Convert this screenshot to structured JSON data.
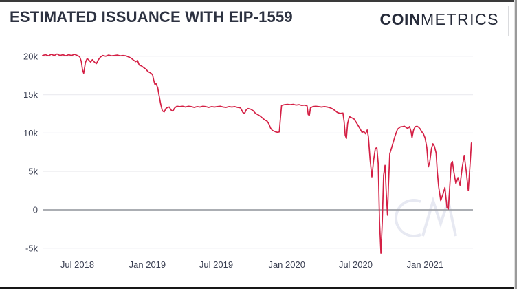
{
  "header": {
    "title": "ESTIMATED ISSUANCE WITH EIP-1559",
    "logo_bold": "COIN",
    "logo_light": "METRICS"
  },
  "watermark": "CM",
  "colors": {
    "background": "#ffffff",
    "line": "#d42045",
    "grid": "#ededf1",
    "zero_line": "#9fa2a8",
    "title": "#2d3241",
    "axis_label": "#3a3f52",
    "watermark": "#e7e9f2",
    "logo": "#262b3a"
  },
  "chart_data": {
    "type": "line",
    "title": "ESTIMATED ISSUANCE WITH EIP-1559",
    "xlabel": "",
    "ylabel": "",
    "grid": "horizontal",
    "legend": "none",
    "x_unit": "months since Apr 2018",
    "y_unit_scale": "thousands (k)",
    "ylim_k": [
      -7,
      21
    ],
    "x_ticks": [
      {
        "m": 3.0,
        "label": "Jul 2018"
      },
      {
        "m": 9.05,
        "label": "Jan 2019"
      },
      {
        "m": 15.0,
        "label": "Jul 2019"
      },
      {
        "m": 21.1,
        "label": "Jan 2020"
      },
      {
        "m": 27.05,
        "label": "Jul 2020"
      },
      {
        "m": 33.05,
        "label": "Jan 2021"
      }
    ],
    "y_ticks": [
      {
        "v": 20,
        "label": "20k"
      },
      {
        "v": 15,
        "label": "15k"
      },
      {
        "v": 10,
        "label": "10k"
      },
      {
        "v": 5,
        "label": "5k"
      },
      {
        "v": 0,
        "label": "0"
      },
      {
        "v": -5,
        "label": "-5k"
      }
    ],
    "series": [
      {
        "name": "Estimated issuance with EIP-1559",
        "color": "#d42045",
        "points": [
          [
            0,
            20.1
          ],
          [
            0.25,
            20.2
          ],
          [
            0.5,
            20.05
          ],
          [
            0.75,
            20.25
          ],
          [
            1,
            20.1
          ],
          [
            1.25,
            20.3
          ],
          [
            1.5,
            20.1
          ],
          [
            1.75,
            20.2
          ],
          [
            2,
            20.05
          ],
          [
            2.25,
            20.2
          ],
          [
            2.5,
            20.1
          ],
          [
            2.75,
            20.25
          ],
          [
            3,
            20.1
          ],
          [
            3.2,
            19.95
          ],
          [
            3.35,
            19.3
          ],
          [
            3.45,
            18.2
          ],
          [
            3.55,
            17.8
          ],
          [
            3.7,
            19.2
          ],
          [
            3.85,
            19.7
          ],
          [
            4,
            19.5
          ],
          [
            4.15,
            19.25
          ],
          [
            4.3,
            19.55
          ],
          [
            4.5,
            19.2
          ],
          [
            4.65,
            19.05
          ],
          [
            4.8,
            19.5
          ],
          [
            5,
            19.9
          ],
          [
            5.2,
            20.1
          ],
          [
            5.45,
            20
          ],
          [
            5.7,
            20.15
          ],
          [
            5.95,
            20.05
          ],
          [
            6.2,
            20.1
          ],
          [
            6.45,
            20.15
          ],
          [
            6.7,
            20.05
          ],
          [
            6.95,
            20.1
          ],
          [
            7.2,
            20.05
          ],
          [
            7.45,
            19.9
          ],
          [
            7.65,
            19.75
          ],
          [
            7.85,
            19.5
          ],
          [
            8.05,
            19.3
          ],
          [
            8.2,
            19.45
          ],
          [
            8.35,
            18.85
          ],
          [
            8.55,
            18.75
          ],
          [
            8.75,
            18.5
          ],
          [
            8.95,
            18.3
          ],
          [
            9.1,
            18
          ],
          [
            9.25,
            17.9
          ],
          [
            9.4,
            17.75
          ],
          [
            9.5,
            17.6
          ],
          [
            9.6,
            16.9
          ],
          [
            9.7,
            16.35
          ],
          [
            9.8,
            16.45
          ],
          [
            9.95,
            15.9
          ],
          [
            10.05,
            15
          ],
          [
            10.2,
            13.8
          ],
          [
            10.35,
            12.9
          ],
          [
            10.5,
            12.75
          ],
          [
            10.65,
            13.2
          ],
          [
            10.8,
            13.35
          ],
          [
            10.95,
            13.4
          ],
          [
            11.1,
            13
          ],
          [
            11.25,
            12.85
          ],
          [
            11.4,
            13.25
          ],
          [
            11.6,
            13.5
          ],
          [
            11.85,
            13.45
          ],
          [
            12.1,
            13.5
          ],
          [
            12.35,
            13.4
          ],
          [
            12.6,
            13.5
          ],
          [
            12.85,
            13.45
          ],
          [
            13.1,
            13.35
          ],
          [
            13.35,
            13.45
          ],
          [
            13.6,
            13.4
          ],
          [
            13.85,
            13.5
          ],
          [
            14.1,
            13.45
          ],
          [
            14.35,
            13.35
          ],
          [
            14.6,
            13.45
          ],
          [
            14.85,
            13.4
          ],
          [
            15.1,
            13.45
          ],
          [
            15.35,
            13.5
          ],
          [
            15.6,
            13.4
          ],
          [
            15.85,
            13.35
          ],
          [
            16.1,
            13.45
          ],
          [
            16.35,
            13.4
          ],
          [
            16.6,
            13.45
          ],
          [
            16.85,
            13.35
          ],
          [
            17.1,
            13.3
          ],
          [
            17.3,
            12.7
          ],
          [
            17.45,
            12.55
          ],
          [
            17.6,
            13.05
          ],
          [
            17.75,
            13.2
          ],
          [
            18,
            13.1
          ],
          [
            18.2,
            12.9
          ],
          [
            18.4,
            12.55
          ],
          [
            18.6,
            12.4
          ],
          [
            18.8,
            12.2
          ],
          [
            19,
            11.95
          ],
          [
            19.2,
            11.7
          ],
          [
            19.4,
            11.55
          ],
          [
            19.55,
            11.2
          ],
          [
            19.7,
            10.65
          ],
          [
            19.85,
            10.35
          ],
          [
            20,
            10.25
          ],
          [
            20.15,
            10.15
          ],
          [
            20.3,
            10.1
          ],
          [
            20.45,
            10.15
          ],
          [
            20.55,
            12
          ],
          [
            20.65,
            13.6
          ],
          [
            20.9,
            13.7
          ],
          [
            21.15,
            13.75
          ],
          [
            21.4,
            13.7
          ],
          [
            21.65,
            13.75
          ],
          [
            21.9,
            13.65
          ],
          [
            22.15,
            13.7
          ],
          [
            22.4,
            13.6
          ],
          [
            22.65,
            13.65
          ],
          [
            22.85,
            13.55
          ],
          [
            22.95,
            12.4
          ],
          [
            23.05,
            12.3
          ],
          [
            23.15,
            13.3
          ],
          [
            23.35,
            13.45
          ],
          [
            23.6,
            13.5
          ],
          [
            23.85,
            13.45
          ],
          [
            24.1,
            13.4
          ],
          [
            24.35,
            13.45
          ],
          [
            24.6,
            13.4
          ],
          [
            24.85,
            13.3
          ],
          [
            25.05,
            13.15
          ],
          [
            25.25,
            12.95
          ],
          [
            25.45,
            12.7
          ],
          [
            25.7,
            12.55
          ],
          [
            25.95,
            12.6
          ],
          [
            26.05,
            11.5
          ],
          [
            26.15,
            9.7
          ],
          [
            26.25,
            9.3
          ],
          [
            26.35,
            11.2
          ],
          [
            26.5,
            12.15
          ],
          [
            26.7,
            12
          ],
          [
            26.9,
            11.85
          ],
          [
            27.1,
            11.4
          ],
          [
            27.3,
            10.9
          ],
          [
            27.45,
            10.5
          ],
          [
            27.6,
            10.1
          ],
          [
            27.75,
            10.2
          ],
          [
            27.9,
            9.9
          ],
          [
            28.05,
            10.4
          ],
          [
            28.15,
            9.5
          ],
          [
            28.3,
            6.5
          ],
          [
            28.45,
            4.3
          ],
          [
            28.6,
            6.5
          ],
          [
            28.75,
            8
          ],
          [
            28.88,
            8.1
          ],
          [
            29,
            6
          ],
          [
            29.11,
            -1.5
          ],
          [
            29.23,
            -5.65
          ],
          [
            29.35,
            -1.5
          ],
          [
            29.46,
            4.5
          ],
          [
            29.59,
            5.8
          ],
          [
            29.7,
            2
          ],
          [
            29.8,
            -0.7
          ],
          [
            29.88,
            3
          ],
          [
            30,
            7.3
          ],
          [
            30.2,
            8.3
          ],
          [
            30.45,
            9.6
          ],
          [
            30.66,
            10.5
          ],
          [
            30.9,
            10.8
          ],
          [
            31.1,
            10.85
          ],
          [
            31.25,
            10.9
          ],
          [
            31.4,
            10.75
          ],
          [
            31.55,
            10.6
          ],
          [
            31.7,
            10.85
          ],
          [
            31.82,
            10.3
          ],
          [
            31.92,
            9.4
          ],
          [
            32.05,
            10.4
          ],
          [
            32.2,
            10.85
          ],
          [
            32.35,
            10.9
          ],
          [
            32.5,
            10.75
          ],
          [
            32.62,
            10.55
          ],
          [
            32.75,
            10.2
          ],
          [
            32.9,
            9.9
          ],
          [
            33.05,
            9.35
          ],
          [
            33.2,
            8.1
          ],
          [
            33.33,
            5.6
          ],
          [
            33.45,
            6.2
          ],
          [
            33.6,
            8
          ],
          [
            33.72,
            8.6
          ],
          [
            33.85,
            8.3
          ],
          [
            34,
            7.4
          ],
          [
            34.1,
            5
          ],
          [
            34.22,
            3
          ],
          [
            34.4,
            1.2
          ],
          [
            34.58,
            2
          ],
          [
            34.76,
            2.9
          ],
          [
            34.94,
            0.3
          ],
          [
            35.06,
            0.1
          ],
          [
            35.3,
            6
          ],
          [
            35.41,
            6.3
          ],
          [
            35.53,
            5
          ],
          [
            35.71,
            3.4
          ],
          [
            35.89,
            4.2
          ],
          [
            36.07,
            3.2
          ],
          [
            36.25,
            5.5
          ],
          [
            36.43,
            7.1
          ],
          [
            36.61,
            5
          ],
          [
            36.78,
            2.5
          ],
          [
            36.96,
            6.5
          ],
          [
            37.05,
            8.7
          ]
        ]
      }
    ]
  }
}
